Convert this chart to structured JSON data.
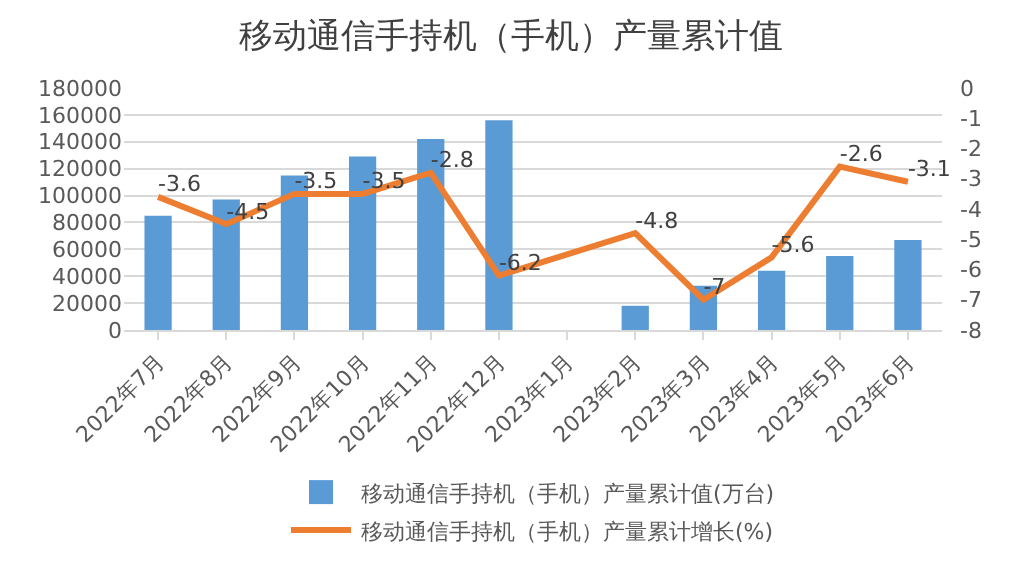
{
  "chart_data": {
    "type": "bar",
    "title": "移动通信手持机（手机）产量累计值",
    "categories": [
      "2022年7月",
      "2022年8月",
      "2022年9月",
      "2022年10月",
      "2022年11月",
      "2022年12月",
      "2023年1月",
      "2023年2月",
      "2023年3月",
      "2023年4月",
      "2023年5月",
      "2023年6月"
    ],
    "series": [
      {
        "name": "移动通信手持机（手机）产量累计值(万台)",
        "color": "#5b9bd5",
        "values": [
          85000,
          97000,
          115000,
          129000,
          142000,
          156000,
          null,
          18000,
          33000,
          44000,
          55000,
          67000
        ]
      },
      {
        "name": "移动通信手持机（手机）产量累计增长(%)",
        "type": "line",
        "axis": "y2",
        "color": "#ed7d31",
        "values": [
          -3.6,
          -4.5,
          -3.5,
          -3.5,
          -2.8,
          -6.2,
          null,
          -4.8,
          -7,
          -5.6,
          -2.6,
          -3.1
        ],
        "value_labels": [
          "-3.6",
          "-4.5",
          "-3.5",
          "-3.5",
          "-2.8",
          "-6.2",
          null,
          "-4.8",
          "-7",
          "-5.6",
          "-2.6",
          "-3.1"
        ]
      }
    ],
    "ylim": [
      0,
      180000
    ],
    "yticks": [
      0,
      20000,
      40000,
      60000,
      80000,
      100000,
      120000,
      140000,
      160000,
      180000
    ],
    "y2lim": [
      -8,
      0
    ],
    "y2ticks": [
      0,
      -1,
      -2,
      -3,
      -4,
      -5,
      -6,
      -7,
      -8
    ],
    "grid": "y",
    "legend": "bottom",
    "marker": "none"
  }
}
